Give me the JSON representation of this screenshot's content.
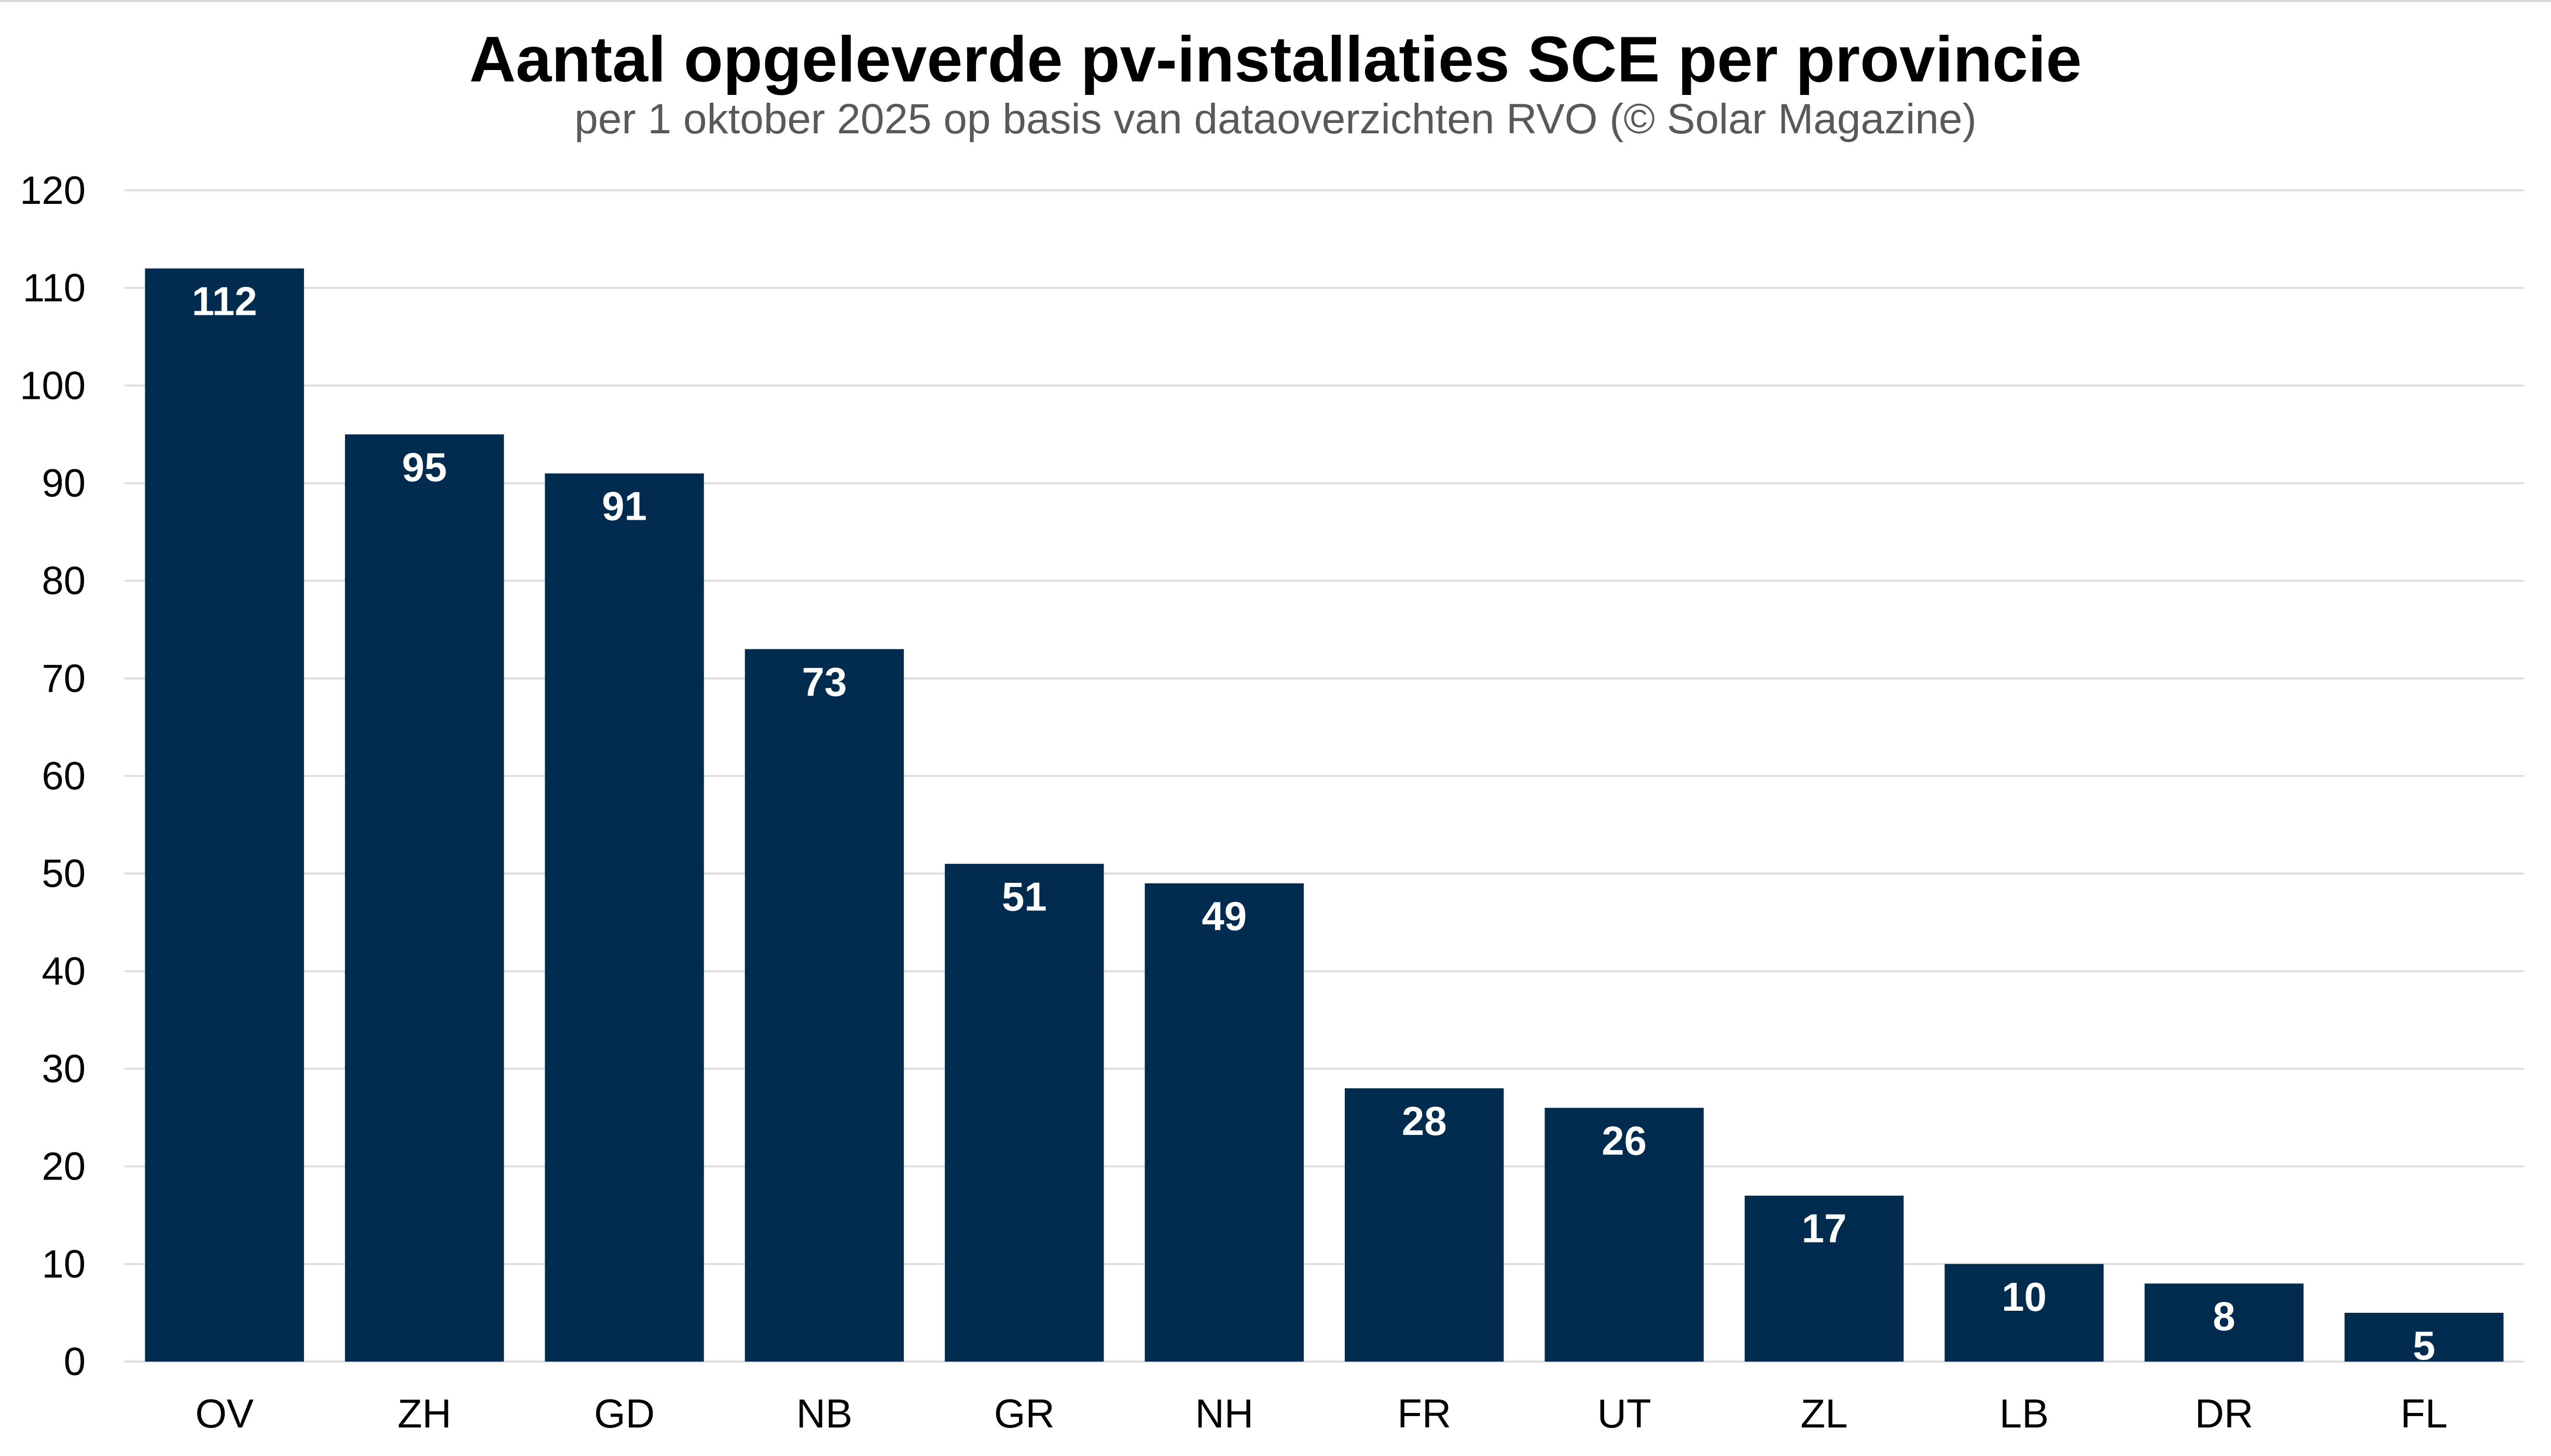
{
  "chart_data": {
    "type": "bar",
    "title": "Aantal opgeleverde pv-installaties SCE per provincie",
    "subtitle": "per 1 oktober 2025 op basis van dataoverzichten RVO (© Solar Magazine)",
    "categories": [
      "OV",
      "ZH",
      "GD",
      "NB",
      "GR",
      "NH",
      "FR",
      "UT",
      "ZL",
      "LB",
      "DR",
      "FL"
    ],
    "values": [
      112,
      95,
      91,
      73,
      51,
      49,
      28,
      26,
      17,
      10,
      8,
      5
    ],
    "ylim": [
      0,
      120
    ],
    "yticks": [
      0,
      10,
      20,
      30,
      40,
      50,
      60,
      70,
      80,
      90,
      100,
      110,
      120
    ],
    "xlabel": "",
    "ylabel": "",
    "grid": true,
    "data_labels": "inside-top",
    "bar_color": "#012b4f",
    "grid_color": "#dedede",
    "label_color": "#ffffff"
  }
}
